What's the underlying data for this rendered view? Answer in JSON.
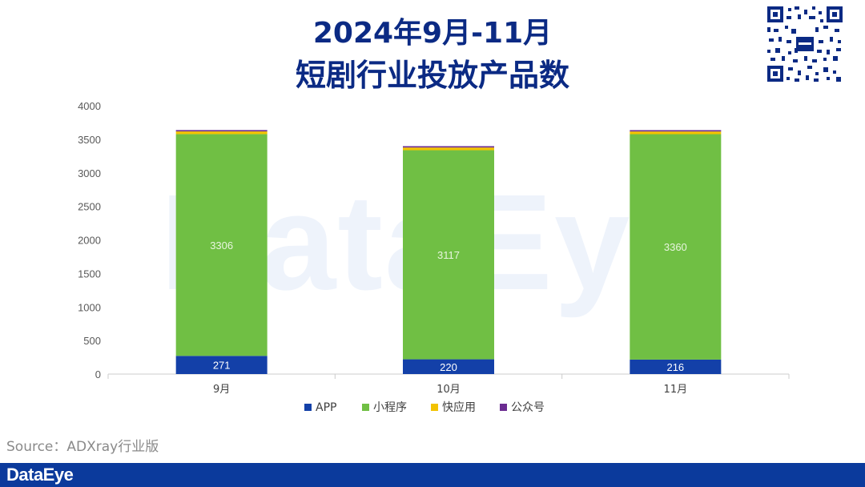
{
  "title_line1": "2024年9月-11月",
  "title_line2": "短剧行业投放产品数",
  "watermark": "DataEye",
  "source": "Source：ADXray行业版",
  "footer_brand": "DataEye",
  "colors": {
    "title": "#0b2a84",
    "app": "#1340a8",
    "miniprogram": "#70bf44",
    "quickapp": "#f2c200",
    "official_account": "#6b2c91",
    "footer": "#0b3a9c"
  },
  "chart_data": {
    "type": "bar",
    "stacked": true,
    "categories": [
      "9月",
      "10月",
      "11月"
    ],
    "series": [
      {
        "name": "APP",
        "values": [
          271,
          220,
          216
        ],
        "color": "#1340a8",
        "show_labels": true,
        "label_color": "#ffffff"
      },
      {
        "name": "小程序",
        "values": [
          3306,
          3117,
          3360
        ],
        "color": "#70bf44",
        "show_labels": true,
        "label_color": "#e8f5df"
      },
      {
        "name": "快应用",
        "values": [
          40,
          40,
          40
        ],
        "color": "#f2c200",
        "show_labels": false
      },
      {
        "name": "公众号",
        "values": [
          20,
          20,
          20
        ],
        "color": "#6b2c91",
        "show_labels": false
      }
    ],
    "ylim": [
      0,
      4000
    ],
    "yticks": [
      0,
      500,
      1000,
      1500,
      2000,
      2500,
      3000,
      3500,
      4000
    ],
    "grid": false,
    "legend_position": "bottom"
  }
}
